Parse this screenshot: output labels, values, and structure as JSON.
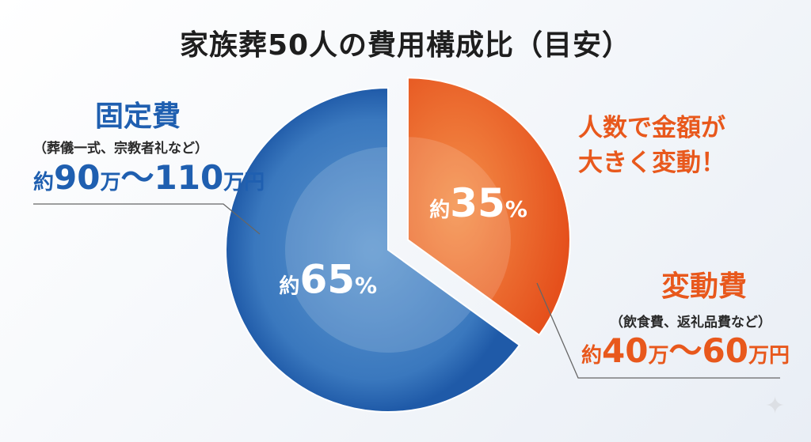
{
  "chart_data": {
    "type": "pie",
    "title": "家族葬50人の費用構成比（目安）",
    "slices": [
      {
        "name": "固定費",
        "value": 65,
        "label": "約65%",
        "label_prefix": "約",
        "label_number": "65",
        "label_unit": "%",
        "detail": "（葬儀一式、宗教者礼など）",
        "amount": "約90万〜110万円",
        "color": "#2866b3"
      },
      {
        "name": "変動費",
        "value": 35,
        "label": "約35%",
        "label_prefix": "約",
        "label_number": "35",
        "label_unit": "%",
        "detail": "（飲食費、返礼品費など）",
        "amount": "約40万〜60万円",
        "color": "#ec6a1f",
        "exploded": true
      }
    ],
    "annotations": [
      "人数で金額が",
      "大きく変動！"
    ]
  },
  "fixed_amount": {
    "pre": "約",
    "n1": "90",
    "u1": "万",
    "sep": "〜",
    "n2": "110",
    "u2": "万円"
  },
  "variable_amount": {
    "pre": "約",
    "n1": "40",
    "u1": "万",
    "sep": "〜",
    "n2": "60",
    "u2": "万円"
  },
  "icons": {
    "corner": "sparkle-icon"
  },
  "sparkle_glyph": "✦"
}
